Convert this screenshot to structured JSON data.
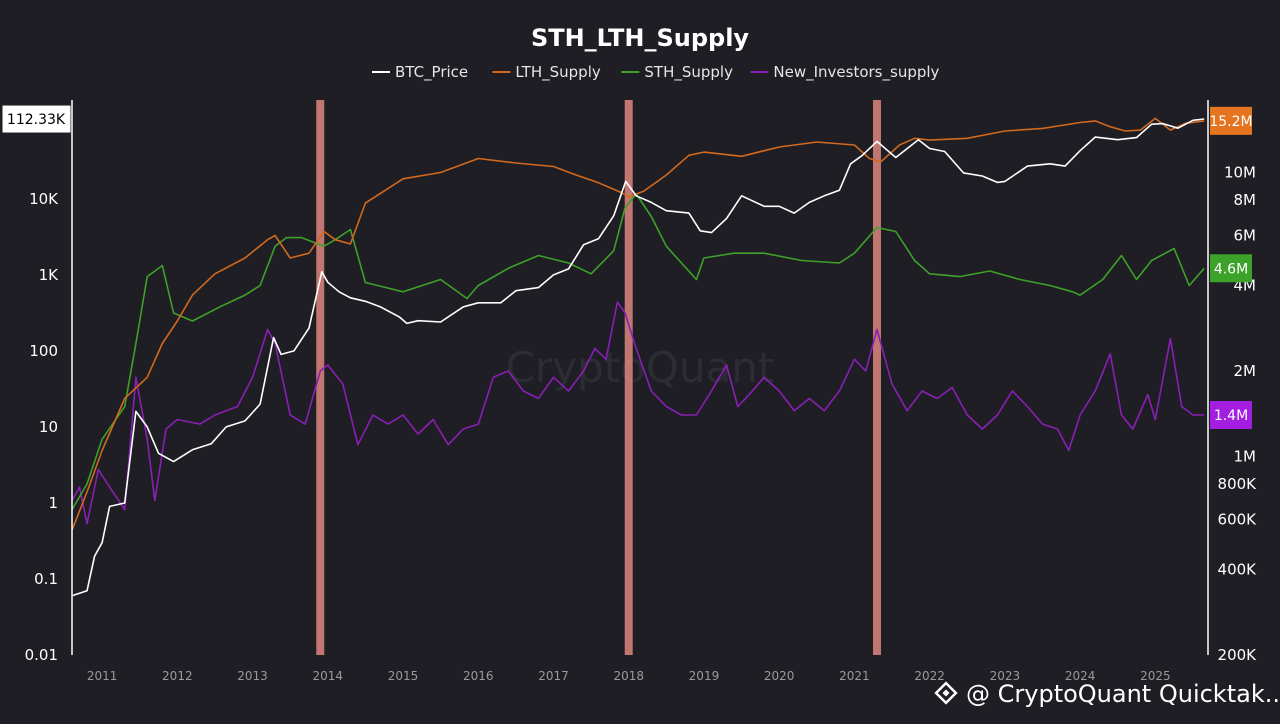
{
  "chart_data": {
    "type": "line",
    "title": "STH_LTH_Supply",
    "xlabel": "",
    "ylabel": "",
    "legend_position": "top-center",
    "grid": false,
    "x_range": [
      2010.6,
      2025.7
    ],
    "x_ticks": [
      "2011",
      "2012",
      "2013",
      "2014",
      "2015",
      "2016",
      "2017",
      "2018",
      "2019",
      "2020",
      "2021",
      "2022",
      "2023",
      "2024",
      "2025"
    ],
    "left_axis": {
      "scale": "log",
      "ylim": [
        0.01,
        200000
      ],
      "tick_values": [
        0.01,
        0.1,
        1,
        10,
        100,
        1000,
        10000
      ],
      "tick_labels": [
        "0.01",
        "0.1",
        "1",
        "10",
        "100",
        "1K",
        "10K"
      ]
    },
    "right_axis": {
      "scale": "log",
      "ylim": [
        200000,
        18000000
      ],
      "tick_values": [
        200000,
        400000,
        600000,
        800000,
        1000000,
        2000000,
        4000000,
        6000000,
        8000000,
        10000000
      ],
      "tick_labels": [
        "200K",
        "400K",
        "600K",
        "800K",
        "1M",
        "2M",
        "4M",
        "6M",
        "8M",
        "10M"
      ]
    },
    "highlight_bands": [
      2013.9,
      2018.0,
      2021.3
    ],
    "current_value_badges": {
      "btc_price": "112.33K",
      "lth_supply": "15.2M",
      "sth_supply": "4.6M",
      "new_investors_supply": "1.4M"
    },
    "series": [
      {
        "name": "BTC_Price",
        "axis": "left",
        "color": "#ffffff",
        "x": [
          2010.6,
          2010.8,
          2010.9,
          2011.0,
          2011.1,
          2011.3,
          2011.45,
          2011.6,
          2011.75,
          2011.95,
          2012.2,
          2012.45,
          2012.65,
          2012.9,
          2013.1,
          2013.28,
          2013.38,
          2013.55,
          2013.75,
          2013.92,
          2014.0,
          2014.15,
          2014.3,
          2014.5,
          2014.7,
          2014.95,
          2015.05,
          2015.2,
          2015.5,
          2015.8,
          2016.0,
          2016.3,
          2016.5,
          2016.8,
          2017.0,
          2017.2,
          2017.4,
          2017.6,
          2017.8,
          2017.96,
          2018.1,
          2018.3,
          2018.5,
          2018.8,
          2018.95,
          2019.1,
          2019.3,
          2019.5,
          2019.8,
          2020.0,
          2020.2,
          2020.4,
          2020.6,
          2020.8,
          2020.95,
          2021.1,
          2021.3,
          2021.55,
          2021.85,
          2022.0,
          2022.2,
          2022.45,
          2022.7,
          2022.9,
          2023.0,
          2023.3,
          2023.6,
          2023.8,
          2024.0,
          2024.2,
          2024.5,
          2024.75,
          2024.95,
          2025.1,
          2025.3,
          2025.5,
          2025.65
        ],
        "values": [
          0.06,
          0.07,
          0.2,
          0.3,
          0.9,
          1.0,
          16,
          10,
          4.5,
          3.5,
          5,
          6,
          10,
          12,
          20,
          150,
          90,
          100,
          200,
          1100,
          800,
          600,
          500,
          450,
          380,
          280,
          230,
          250,
          240,
          380,
          430,
          430,
          620,
          680,
          1000,
          1200,
          2500,
          3000,
          6000,
          17000,
          11000,
          9000,
          7000,
          6500,
          3800,
          3600,
          5500,
          11000,
          8000,
          8000,
          6500,
          9000,
          11000,
          13000,
          29000,
          37000,
          57000,
          35000,
          60000,
          46000,
          42000,
          22000,
          20000,
          16500,
          17000,
          27000,
          29000,
          27000,
          43000,
          65000,
          60000,
          64000,
          96000,
          98000,
          85000,
          108000,
          112330
        ]
      },
      {
        "name": "LTH_Supply",
        "axis": "right",
        "color": "#d2691e",
        "x": [
          2010.6,
          2010.8,
          2011.0,
          2011.3,
          2011.6,
          2011.8,
          2012.0,
          2012.2,
          2012.5,
          2012.9,
          2013.2,
          2013.3,
          2013.5,
          2013.75,
          2013.95,
          2014.1,
          2014.3,
          2014.5,
          2015.0,
          2015.5,
          2016.0,
          2016.5,
          2017.0,
          2017.3,
          2017.6,
          2017.9,
          2018.0,
          2018.2,
          2018.5,
          2018.8,
          2019.0,
          2019.5,
          2020.0,
          2020.5,
          2021.0,
          2021.2,
          2021.35,
          2021.6,
          2021.8,
          2022.0,
          2022.5,
          2023.0,
          2023.5,
          2024.0,
          2024.2,
          2024.4,
          2024.6,
          2024.8,
          2025.0,
          2025.2,
          2025.4,
          2025.65
        ],
        "values": [
          550000,
          750000,
          1050000,
          1600000,
          1900000,
          2500000,
          3000000,
          3700000,
          4400000,
          5000000,
          5800000,
          6000000,
          5000000,
          5200000,
          6200000,
          5800000,
          5600000,
          7800000,
          9500000,
          10000000,
          11200000,
          10800000,
          10500000,
          9800000,
          9200000,
          8500000,
          8200000,
          8600000,
          9800000,
          11500000,
          11800000,
          11400000,
          12300000,
          12800000,
          12500000,
          11200000,
          10900000,
          12500000,
          13200000,
          13000000,
          13200000,
          14000000,
          14300000,
          15000000,
          15200000,
          14500000,
          14000000,
          14100000,
          15500000,
          14100000,
          14900000,
          15200000
        ]
      },
      {
        "name": "STH_Supply",
        "axis": "right",
        "color": "#3fa02a",
        "x": [
          2010.6,
          2010.8,
          2011.0,
          2011.3,
          2011.45,
          2011.6,
          2011.8,
          2011.95,
          2012.2,
          2012.6,
          2012.9,
          2013.1,
          2013.3,
          2013.45,
          2013.65,
          2013.95,
          2014.1,
          2014.3,
          2014.5,
          2015.0,
          2015.5,
          2015.85,
          2016.0,
          2016.4,
          2016.8,
          2017.2,
          2017.5,
          2017.8,
          2017.95,
          2018.1,
          2018.3,
          2018.5,
          2018.9,
          2019.0,
          2019.4,
          2019.8,
          2020.3,
          2020.8,
          2021.0,
          2021.3,
          2021.55,
          2021.8,
          2022.0,
          2022.4,
          2022.8,
          2023.2,
          2023.6,
          2023.9,
          2024.0,
          2024.3,
          2024.55,
          2024.75,
          2024.95,
          2025.25,
          2025.45,
          2025.65
        ],
        "values": [
          650000,
          800000,
          1150000,
          1500000,
          2500000,
          4300000,
          4700000,
          3200000,
          3000000,
          3400000,
          3700000,
          4000000,
          5500000,
          5900000,
          5900000,
          5500000,
          5800000,
          6300000,
          4100000,
          3800000,
          4200000,
          3600000,
          4000000,
          4600000,
          5100000,
          4800000,
          4400000,
          5300000,
          7500000,
          8400000,
          7000000,
          5500000,
          4200000,
          5000000,
          5200000,
          5200000,
          4900000,
          4800000,
          5200000,
          6400000,
          6200000,
          4900000,
          4400000,
          4300000,
          4500000,
          4200000,
          4000000,
          3800000,
          3700000,
          4200000,
          5100000,
          4200000,
          4900000,
          5400000,
          4000000,
          4600000
        ]
      },
      {
        "name": "New_Investors_supply",
        "axis": "right",
        "color": "#8a1fb5",
        "x": [
          2010.6,
          2010.7,
          2010.8,
          2010.95,
          2011.1,
          2011.3,
          2011.45,
          2011.6,
          2011.7,
          2011.85,
          2012.0,
          2012.3,
          2012.5,
          2012.8,
          2013.0,
          2013.2,
          2013.3,
          2013.5,
          2013.7,
          2013.9,
          2014.0,
          2014.2,
          2014.4,
          2014.6,
          2014.8,
          2015.0,
          2015.2,
          2015.4,
          2015.6,
          2015.8,
          2016.0,
          2016.2,
          2016.4,
          2016.6,
          2016.8,
          2017.0,
          2017.2,
          2017.4,
          2017.55,
          2017.7,
          2017.85,
          2017.95,
          2018.1,
          2018.3,
          2018.5,
          2018.7,
          2018.9,
          2019.1,
          2019.3,
          2019.45,
          2019.6,
          2019.8,
          2020.0,
          2020.2,
          2020.4,
          2020.6,
          2020.8,
          2021.0,
          2021.15,
          2021.3,
          2021.5,
          2021.7,
          2021.9,
          2022.1,
          2022.3,
          2022.5,
          2022.7,
          2022.9,
          2023.1,
          2023.3,
          2023.5,
          2023.7,
          2023.85,
          2024.0,
          2024.2,
          2024.4,
          2024.55,
          2024.7,
          2024.9,
          2025.0,
          2025.2,
          2025.35,
          2025.5,
          2025.65
        ],
        "values": [
          700000,
          780000,
          580000,
          900000,
          780000,
          650000,
          1900000,
          1150000,
          700000,
          1250000,
          1350000,
          1300000,
          1400000,
          1500000,
          1900000,
          2800000,
          2500000,
          1400000,
          1300000,
          2000000,
          2100000,
          1800000,
          1100000,
          1400000,
          1300000,
          1400000,
          1200000,
          1350000,
          1100000,
          1250000,
          1300000,
          1900000,
          2000000,
          1700000,
          1600000,
          1900000,
          1700000,
          2000000,
          2400000,
          2200000,
          3500000,
          3200000,
          2400000,
          1700000,
          1500000,
          1400000,
          1400000,
          1700000,
          2100000,
          1500000,
          1650000,
          1900000,
          1700000,
          1450000,
          1600000,
          1450000,
          1700000,
          2200000,
          2000000,
          2800000,
          1800000,
          1450000,
          1700000,
          1600000,
          1750000,
          1400000,
          1250000,
          1400000,
          1700000,
          1500000,
          1300000,
          1250000,
          1050000,
          1400000,
          1700000,
          2300000,
          1400000,
          1250000,
          1650000,
          1350000,
          2600000,
          1500000,
          1400000,
          1400000
        ]
      }
    ]
  },
  "legend": [
    {
      "label": "BTC_Price",
      "color": "#ffffff"
    },
    {
      "label": "LTH_Supply",
      "color": "#d2691e"
    },
    {
      "label": "STH_Supply",
      "color": "#3fa02a"
    },
    {
      "label": "New_Investors_supply",
      "color": "#8a1fb5"
    }
  ],
  "watermark": {
    "center_text": "CryptoQuant",
    "corner_text": "@ CryptoQuant Quicktak..."
  },
  "colors": {
    "background": "#1e1e24",
    "band": "#e58a82",
    "axis": "#ffffff",
    "lth_badge": "#e4741f",
    "sth_badge": "#3da22a",
    "new_badge": "#a31ee0"
  }
}
